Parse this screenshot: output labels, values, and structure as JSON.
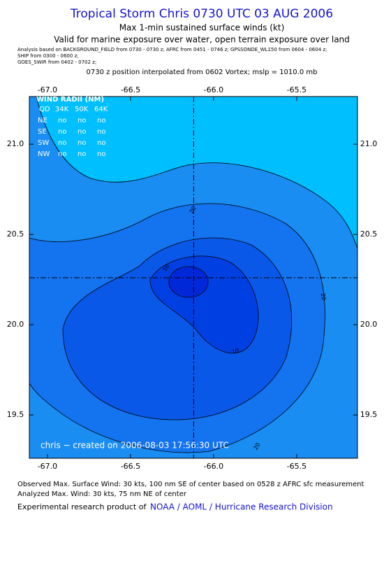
{
  "header": {
    "title": "Tropical Storm Chris 0730 UTC 03 AUG 2006",
    "subtitle": "Max 1-min sustained surface winds (kt)",
    "validity": "Valid for marine exposure over water, open terrain exposure over land",
    "analysis_lines": [
      "Analysis based on  BACKGROUND_FIELD from 0730 - 0730 z;  AFRC from 0451 - 0746 z;  GPSSONDE_WL150 from 0604 - 0604 z;",
      "SHIP from 0300 - 0600 z;",
      "GOES_SWIR from 0402 - 0702 z;"
    ],
    "position_note": "0730 z position interpolated from 0602 Vortex; mslp = 1010.0 mb"
  },
  "chart_data": {
    "type": "contour",
    "xlim": [
      -67.109,
      -65.134
    ],
    "ylim": [
      19.26,
      21.264
    ],
    "xticks": [
      {
        "value": -67,
        "label": "-67.0"
      },
      -66.5,
      {
        "value": -66,
        "label": "-66.0"
      },
      -65.5
    ],
    "yticks": [
      19.5,
      {
        "value": 20,
        "label": "20.0"
      },
      20.5,
      {
        "value": 21,
        "label": "21.0"
      }
    ],
    "center": {
      "x": -66.12,
      "y": 20.26
    },
    "contour_labels": [
      20,
      10,
      20,
      10,
      20
    ]
  },
  "wind_radii": {
    "title": "WIND RADII (NM)",
    "columns": [
      "QD",
      "34K",
      "50K",
      "64K"
    ],
    "rows": [
      [
        "NE",
        "no",
        "no",
        "no"
      ],
      [
        "SE",
        "no",
        "no",
        "no"
      ],
      [
        "SW",
        "no",
        "no",
        "no"
      ],
      [
        "NW",
        "no",
        "no",
        "no"
      ]
    ]
  },
  "credit": "chris − created on 2006-08-03 17:56:30 UTC",
  "footer": {
    "observed": "Observed Max. Surface Wind: 30 kts, 100 nm SE of center based on 0528 z AFRC sfc measurement",
    "analyzed": "Analyzed Max. Wind: 30 kts, 75 nm NE of center",
    "product_prefix": "Experimental research product of",
    "product_link": "NOAA / AOML / Hurricane Research Division"
  }
}
